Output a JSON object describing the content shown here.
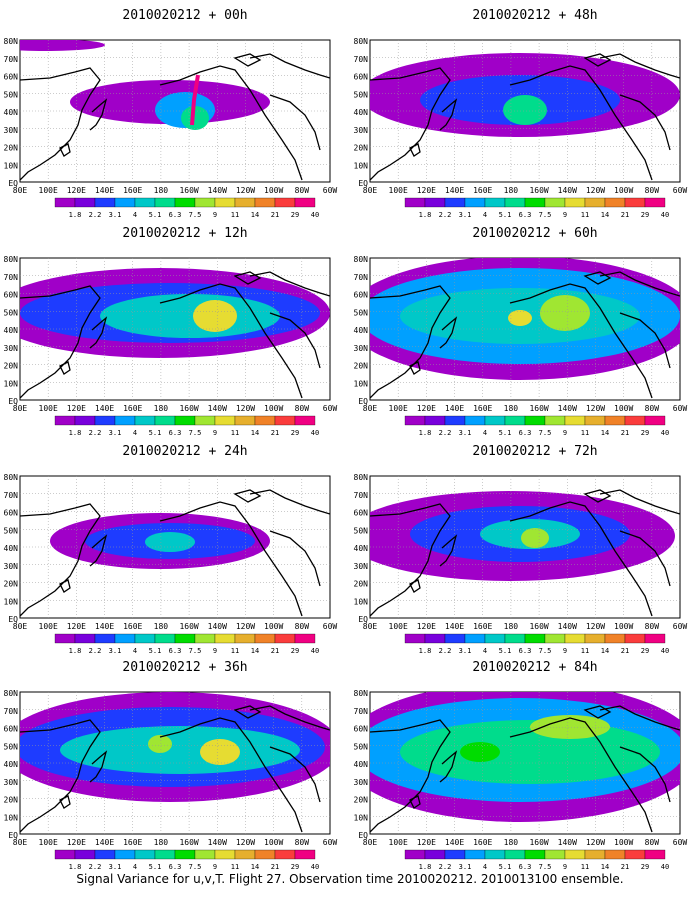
{
  "figure": {
    "caption": "Signal Variance for u,v,T. Flight 27. Observation time 2010020212. 2010013100 ensemble."
  },
  "axes": {
    "lat_labels": [
      "80N",
      "70N",
      "60N",
      "50N",
      "40N",
      "30N",
      "20N",
      "10N",
      "EQ"
    ],
    "lon_labels": [
      "80E",
      "100E",
      "120E",
      "140E",
      "160E",
      "180",
      "160W",
      "140W",
      "120W",
      "100W",
      "80W",
      "60W"
    ]
  },
  "colorbar": {
    "labels": [
      "1.8",
      "2.2",
      "3.1",
      "4",
      "5.1",
      "6.3",
      "7.5",
      "9",
      "11",
      "14",
      "21",
      "29",
      "40"
    ],
    "colors": [
      "#a000c8",
      "#7800dc",
      "#1e3cff",
      "#00a0ff",
      "#00c8c8",
      "#00dc8c",
      "#00dc00",
      "#a0e632",
      "#e6dc32",
      "#e6af2d",
      "#f08228",
      "#fa3c3c",
      "#f00082"
    ]
  },
  "panels": [
    {
      "title": "2010020212 + 00h",
      "level": 0
    },
    {
      "title": "2010020212 + 48h",
      "level": 4
    },
    {
      "title": "2010020212 + 12h",
      "level": 1
    },
    {
      "title": "2010020212 + 60h",
      "level": 5
    },
    {
      "title": "2010020212 + 24h",
      "level": 2
    },
    {
      "title": "2010020212 + 72h",
      "level": 6
    },
    {
      "title": "2010020212 + 36h",
      "level": 3
    },
    {
      "title": "2010020212 + 84h",
      "level": 7
    }
  ]
}
